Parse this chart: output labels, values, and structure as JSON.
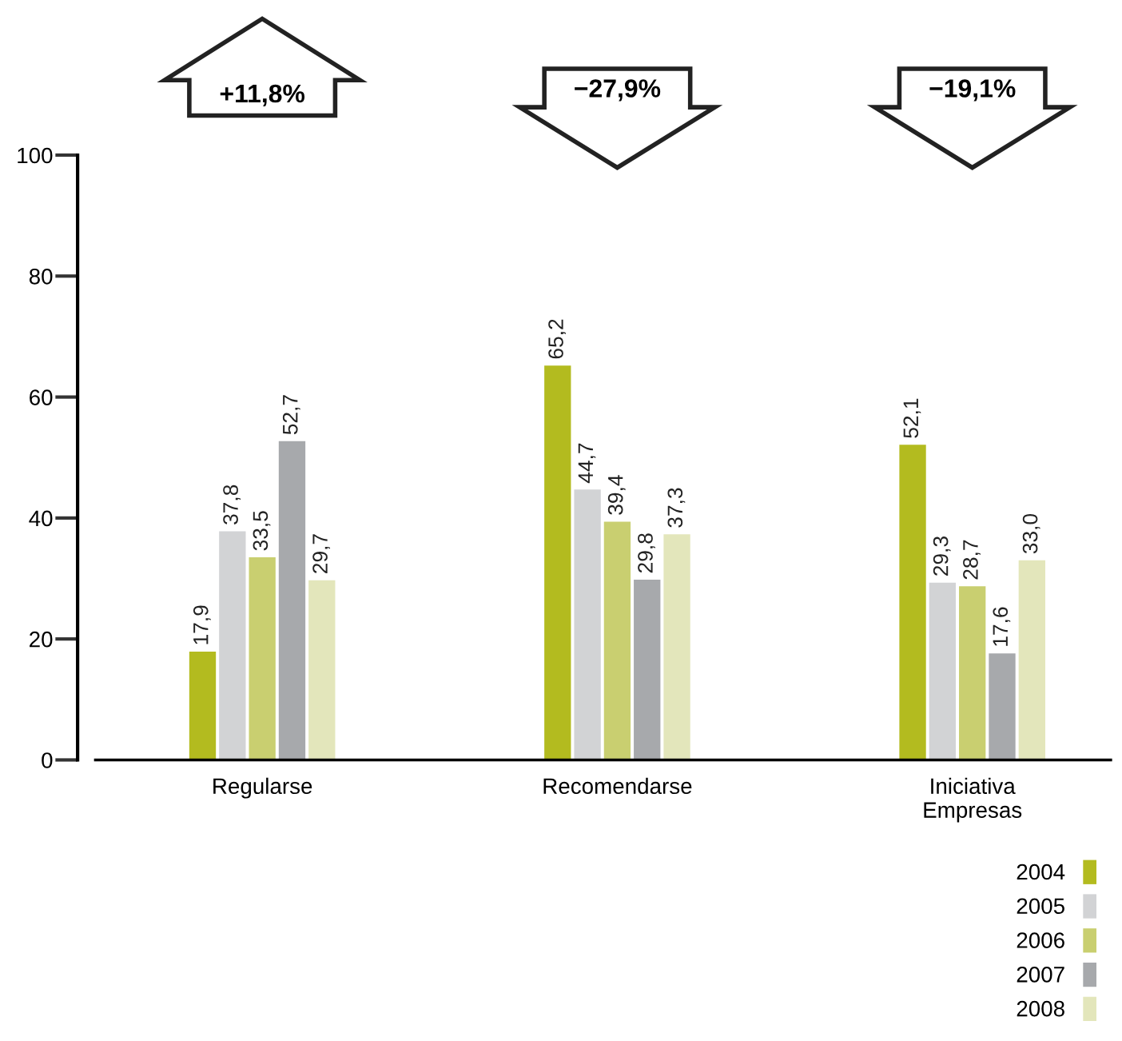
{
  "chart_data": {
    "type": "bar",
    "categories": [
      "Regularse",
      "Recomendarse",
      "Iniciativa\nEmpresas"
    ],
    "series": [
      {
        "name": "2004",
        "color": "#b3bb1f",
        "values": [
          17.9,
          65.2,
          52.1
        ],
        "value_labels": [
          "17,9",
          "65,2",
          "52,1"
        ]
      },
      {
        "name": "2005",
        "color": "#d2d3d5",
        "values": [
          37.8,
          44.7,
          29.3
        ],
        "value_labels": [
          "37,8",
          "44,7",
          "29,3"
        ]
      },
      {
        "name": "2006",
        "color": "#c9cf70",
        "values": [
          33.5,
          39.4,
          28.7
        ],
        "value_labels": [
          "33,5",
          "39,4",
          "28,7"
        ]
      },
      {
        "name": "2007",
        "color": "#a7a9ac",
        "values": [
          52.7,
          29.8,
          17.6
        ],
        "value_labels": [
          "52,7",
          "29,8",
          "17,6"
        ]
      },
      {
        "name": "2008",
        "color": "#e3e6bb",
        "values": [
          29.7,
          37.3,
          33.0
        ],
        "value_labels": [
          "29,7",
          "37,3",
          "33,0"
        ]
      }
    ],
    "ylim": [
      0,
      100
    ],
    "yticks": [
      0,
      20,
      40,
      60,
      80,
      100
    ],
    "legend": "bottom right",
    "grid": false,
    "annotations": [
      "+11,8%",
      "−27,9%",
      "−19,1%"
    ]
  }
}
